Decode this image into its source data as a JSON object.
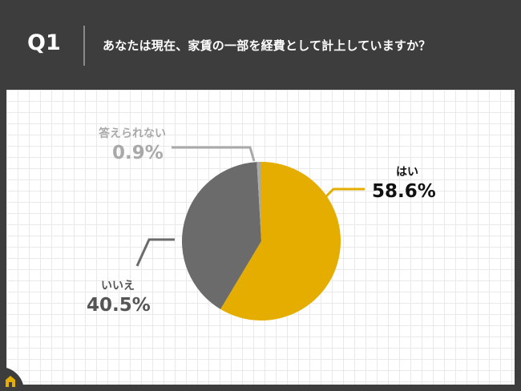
{
  "header": {
    "qnum": "Q1",
    "question": "あなたは現在、家賃の一部を経費として計上していますか？"
  },
  "colors": {
    "yes": "#e4ad00",
    "no": "#6b6b6b",
    "na": "#a9a9a9",
    "header_bg": "#3d3d3d"
  },
  "chart_data": {
    "type": "pie",
    "title": "あなたは現在、家賃の一部を経費として計上していますか？",
    "slices": [
      {
        "label": "はい",
        "value": 58.6,
        "value_label": "58.6%",
        "color": "#e4ad00"
      },
      {
        "label": "いいえ",
        "value": 40.5,
        "value_label": "40.5%",
        "color": "#6b6b6b"
      },
      {
        "label": "答えられない",
        "value": 0.9,
        "value_label": "0.9%",
        "color": "#a9a9a9"
      }
    ],
    "start": "12 o'clock",
    "direction": "clockwise",
    "legend": "none"
  },
  "icons": {
    "home": "home-icon"
  }
}
